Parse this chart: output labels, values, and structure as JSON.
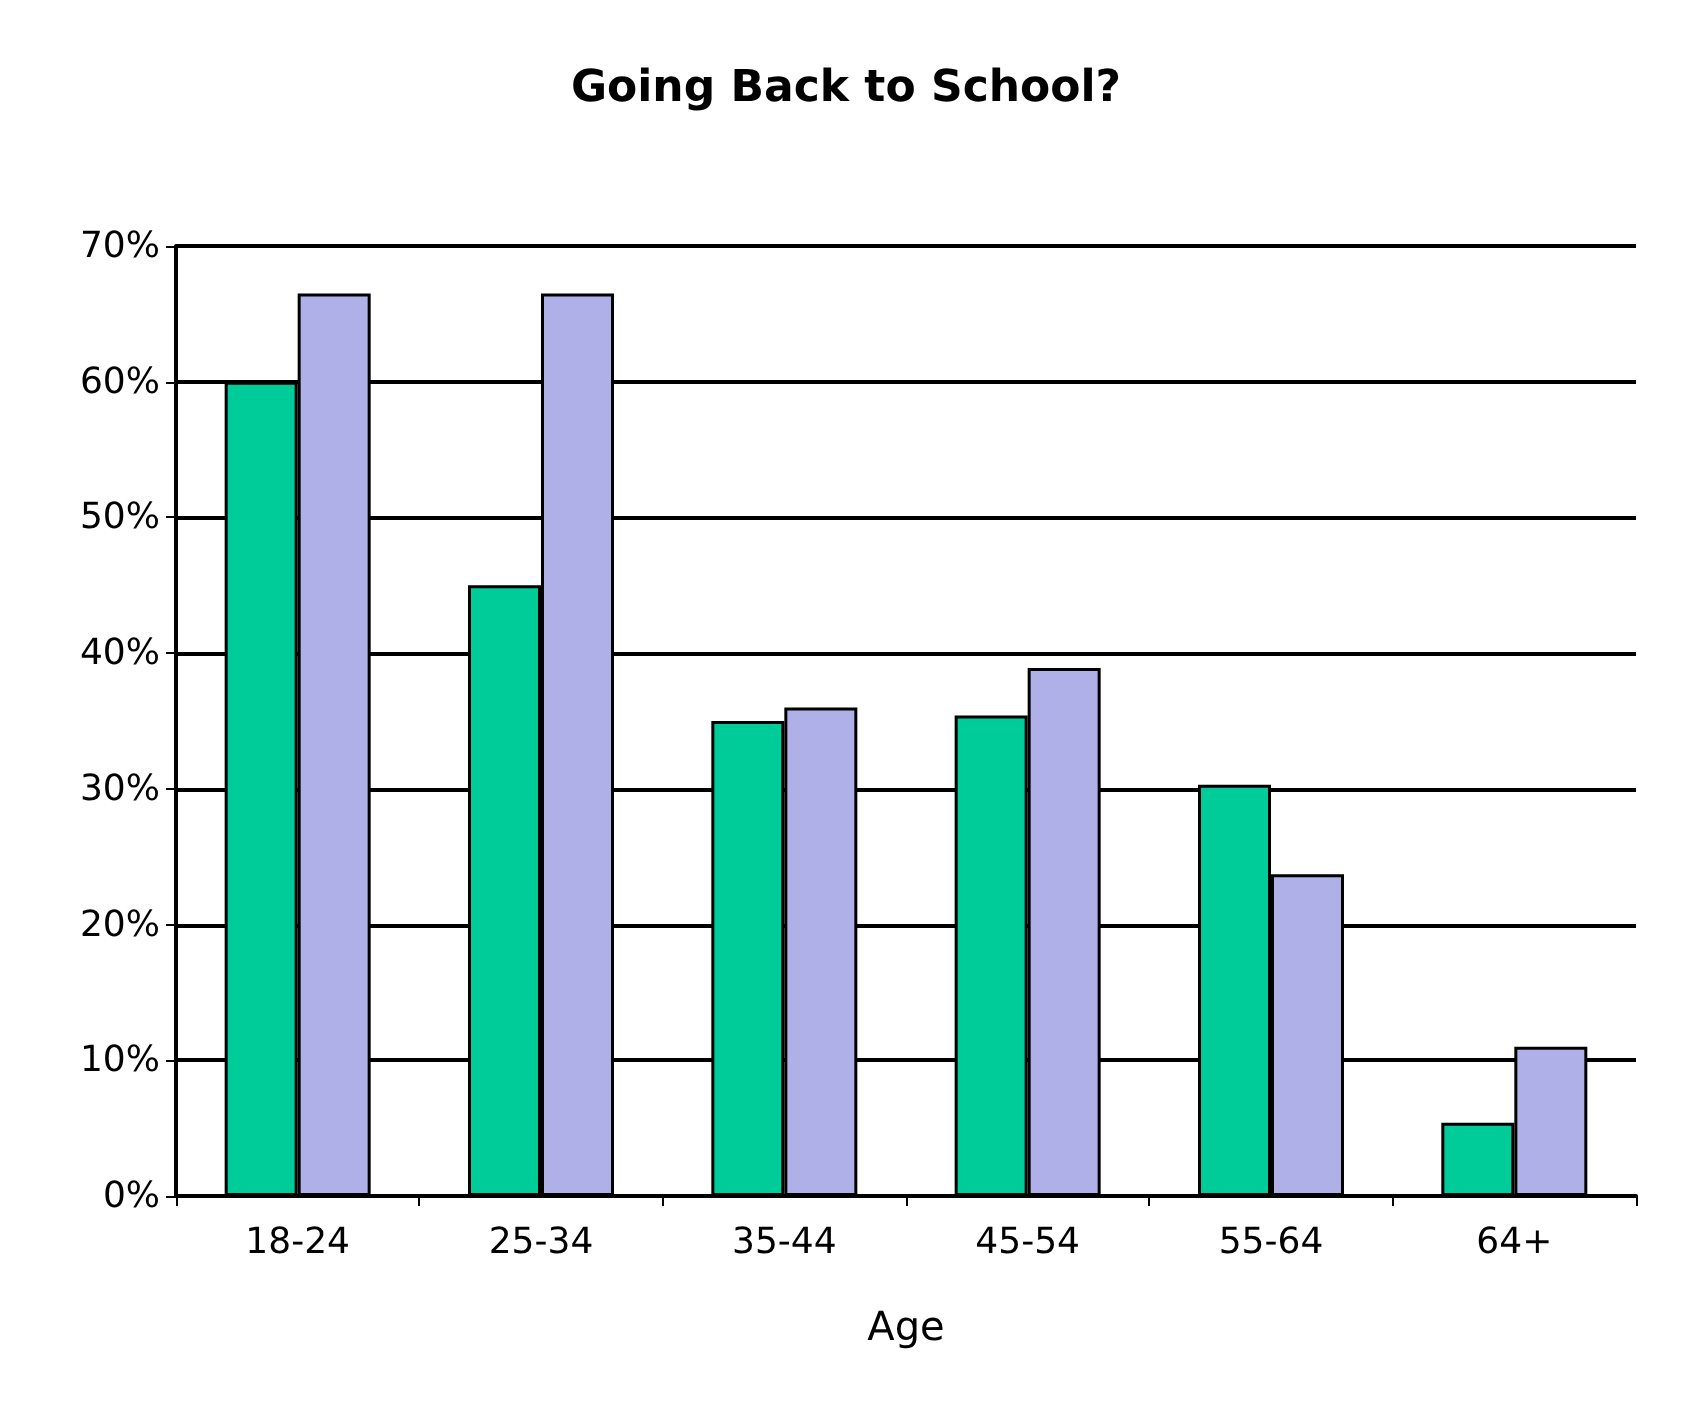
{
  "chart_data": {
    "type": "bar",
    "title": "Going Back to School?",
    "xlabel": "Age",
    "categories": [
      "18-24",
      "25-34",
      "35-44",
      "45-54",
      "55-64",
      "64+"
    ],
    "series": [
      {
        "color": "#00cc99",
        "values": [
          60,
          45,
          35,
          35.4,
          30.3,
          5.4
        ]
      },
      {
        "color": "#b0b0e8",
        "values": [
          66.5,
          66.5,
          36,
          38.9,
          23.7,
          11
        ]
      }
    ],
    "ylim": [
      0,
      70
    ],
    "yticks": [
      {
        "value": 0,
        "label": "0%"
      },
      {
        "value": 10,
        "label": "10%"
      },
      {
        "value": 20,
        "label": "20%"
      },
      {
        "value": 30,
        "label": "30%"
      },
      {
        "value": 40,
        "label": "40%"
      },
      {
        "value": 50,
        "label": "50%"
      },
      {
        "value": 60,
        "label": "60%"
      },
      {
        "value": 70,
        "label": "70%"
      }
    ],
    "grid": "y"
  }
}
